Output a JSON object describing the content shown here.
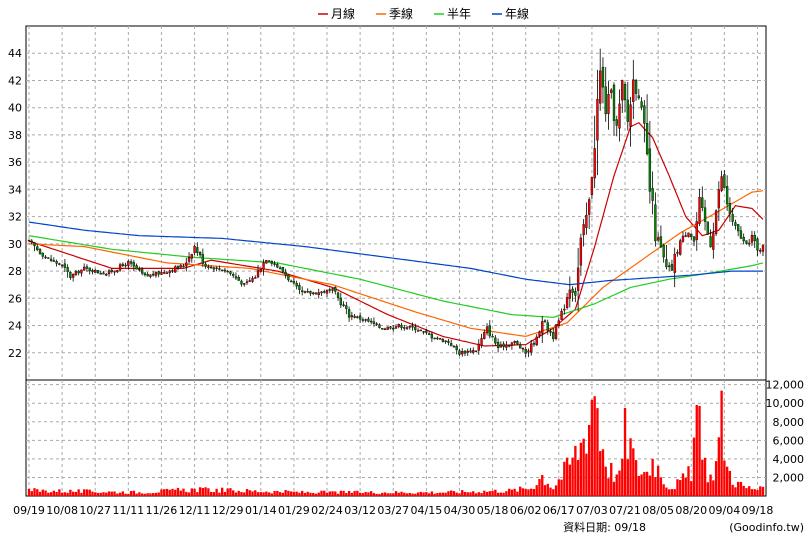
{
  "chart_data": {
    "type": "candlestick-volume",
    "legend": [
      {
        "name": "月線",
        "color": "#cc0000"
      },
      {
        "name": "季線",
        "color": "#ff6600"
      },
      {
        "name": "半年",
        "color": "#22cc22"
      },
      {
        "name": "年線",
        "color": "#0044cc"
      }
    ],
    "price_axis": {
      "ylim": [
        20,
        46
      ],
      "ticks": [
        22,
        24,
        26,
        28,
        30,
        32,
        34,
        36,
        38,
        40,
        42,
        44
      ]
    },
    "volume_axis": {
      "ylim": [
        0,
        12500
      ],
      "ticks": [
        2000,
        4000,
        6000,
        8000,
        10000,
        12000
      ],
      "tick_labels": [
        "2,000",
        "4,000",
        "6,000",
        "8,000",
        "10,000",
        "12,000"
      ]
    },
    "x_labels": [
      "09/19",
      "10/08",
      "10/27",
      "11/11",
      "11/26",
      "12/11",
      "12/29",
      "01/14",
      "01/29",
      "02/24",
      "03/12",
      "03/27",
      "04/15",
      "04/30",
      "05/18",
      "06/02",
      "06/17",
      "07/03",
      "07/21",
      "08/05",
      "08/20",
      "09/04",
      "09/18"
    ],
    "x_label_index": [
      0,
      12,
      24,
      36,
      48,
      60,
      72,
      84,
      96,
      108,
      120,
      132,
      144,
      156,
      168,
      180,
      192,
      204,
      216,
      228,
      240,
      252,
      264
    ],
    "anchors": [
      {
        "i": 0,
        "p": 30.2
      },
      {
        "i": 6,
        "p": 29.0
      },
      {
        "i": 12,
        "p": 28.4
      },
      {
        "i": 15,
        "p": 27.6
      },
      {
        "i": 20,
        "p": 28.2
      },
      {
        "i": 28,
        "p": 27.8
      },
      {
        "i": 36,
        "p": 28.6
      },
      {
        "i": 42,
        "p": 27.6
      },
      {
        "i": 50,
        "p": 28.0
      },
      {
        "i": 56,
        "p": 28.4
      },
      {
        "i": 60,
        "p": 29.8
      },
      {
        "i": 64,
        "p": 28.4
      },
      {
        "i": 72,
        "p": 28.0
      },
      {
        "i": 78,
        "p": 27.0
      },
      {
        "i": 82,
        "p": 27.6
      },
      {
        "i": 86,
        "p": 29.0
      },
      {
        "i": 92,
        "p": 28.0
      },
      {
        "i": 98,
        "p": 26.4
      },
      {
        "i": 104,
        "p": 26.4
      },
      {
        "i": 110,
        "p": 26.6
      },
      {
        "i": 116,
        "p": 24.8
      },
      {
        "i": 122,
        "p": 24.4
      },
      {
        "i": 128,
        "p": 23.8
      },
      {
        "i": 134,
        "p": 24.0
      },
      {
        "i": 140,
        "p": 23.8
      },
      {
        "i": 146,
        "p": 23.2
      },
      {
        "i": 152,
        "p": 22.8
      },
      {
        "i": 156,
        "p": 22.0
      },
      {
        "i": 162,
        "p": 22.2
      },
      {
        "i": 166,
        "p": 23.8
      },
      {
        "i": 170,
        "p": 22.4
      },
      {
        "i": 176,
        "p": 22.8
      },
      {
        "i": 180,
        "p": 22.0
      },
      {
        "i": 184,
        "p": 23.0
      },
      {
        "i": 186,
        "p": 24.6
      },
      {
        "i": 188,
        "p": 23.8
      },
      {
        "i": 190,
        "p": 23.2
      },
      {
        "i": 194,
        "p": 25.4
      },
      {
        "i": 196,
        "p": 27.0
      },
      {
        "i": 198,
        "p": 26.4
      },
      {
        "i": 200,
        "p": 30.0
      },
      {
        "i": 203,
        "p": 33.0
      },
      {
        "i": 205,
        "p": 38.0
      },
      {
        "i": 207,
        "p": 42.5
      },
      {
        "i": 209,
        "p": 40.0
      },
      {
        "i": 211,
        "p": 41.0
      },
      {
        "i": 213,
        "p": 38.5
      },
      {
        "i": 215,
        "p": 41.5
      },
      {
        "i": 217,
        "p": 39.0
      },
      {
        "i": 219,
        "p": 42.0
      },
      {
        "i": 221,
        "p": 41.0
      },
      {
        "i": 223,
        "p": 38.0
      },
      {
        "i": 225,
        "p": 34.0
      },
      {
        "i": 227,
        "p": 31.0
      },
      {
        "i": 229,
        "p": 29.5
      },
      {
        "i": 231,
        "p": 28.0
      },
      {
        "i": 233,
        "p": 28.2
      },
      {
        "i": 236,
        "p": 30.2
      },
      {
        "i": 239,
        "p": 31.0
      },
      {
        "i": 241,
        "p": 30.2
      },
      {
        "i": 243,
        "p": 33.0
      },
      {
        "i": 245,
        "p": 31.5
      },
      {
        "i": 247,
        "p": 30.0
      },
      {
        "i": 249,
        "p": 32.5
      },
      {
        "i": 251,
        "p": 35.0
      },
      {
        "i": 253,
        "p": 33.0
      },
      {
        "i": 255,
        "p": 31.5
      },
      {
        "i": 258,
        "p": 30.5
      },
      {
        "i": 260,
        "p": 29.8
      },
      {
        "i": 262,
        "p": 30.6
      },
      {
        "i": 264,
        "p": 29.4
      },
      {
        "i": 265,
        "p": 29.6
      },
      {
        "i": 266,
        "p": 30.2
      }
    ],
    "volume_anchors": [
      {
        "i": 0,
        "v": 600
      },
      {
        "i": 40,
        "v": 400
      },
      {
        "i": 60,
        "v": 700
      },
      {
        "i": 100,
        "v": 400
      },
      {
        "i": 150,
        "v": 400
      },
      {
        "i": 175,
        "v": 600
      },
      {
        "i": 182,
        "v": 900
      },
      {
        "i": 186,
        "v": 2200
      },
      {
        "i": 190,
        "v": 900
      },
      {
        "i": 196,
        "v": 3500
      },
      {
        "i": 200,
        "v": 5500
      },
      {
        "i": 203,
        "v": 8500
      },
      {
        "i": 205,
        "v": 12800
      },
      {
        "i": 207,
        "v": 6500
      },
      {
        "i": 210,
        "v": 3000
      },
      {
        "i": 214,
        "v": 2000
      },
      {
        "i": 216,
        "v": 6800
      },
      {
        "i": 218,
        "v": 5500
      },
      {
        "i": 220,
        "v": 3000
      },
      {
        "i": 224,
        "v": 2500
      },
      {
        "i": 226,
        "v": 4000
      },
      {
        "i": 228,
        "v": 3000
      },
      {
        "i": 232,
        "v": 900
      },
      {
        "i": 236,
        "v": 1500
      },
      {
        "i": 240,
        "v": 2500
      },
      {
        "i": 242,
        "v": 9500
      },
      {
        "i": 244,
        "v": 4000
      },
      {
        "i": 247,
        "v": 2000
      },
      {
        "i": 249,
        "v": 3500
      },
      {
        "i": 251,
        "v": 8500
      },
      {
        "i": 253,
        "v": 3000
      },
      {
        "i": 256,
        "v": 1500
      },
      {
        "i": 260,
        "v": 900
      },
      {
        "i": 266,
        "v": 700
      }
    ],
    "ma_lines": {
      "month": [
        {
          "i": 0,
          "p": 30.2
        },
        {
          "i": 30,
          "p": 28.2
        },
        {
          "i": 56,
          "p": 28.2
        },
        {
          "i": 66,
          "p": 28.8
        },
        {
          "i": 90,
          "p": 28.0
        },
        {
          "i": 110,
          "p": 26.8
        },
        {
          "i": 130,
          "p": 24.8
        },
        {
          "i": 150,
          "p": 23.2
        },
        {
          "i": 165,
          "p": 22.5
        },
        {
          "i": 180,
          "p": 22.6
        },
        {
          "i": 190,
          "p": 23.8
        },
        {
          "i": 198,
          "p": 25.2
        },
        {
          "i": 205,
          "p": 29.8
        },
        {
          "i": 212,
          "p": 35.0
        },
        {
          "i": 218,
          "p": 38.6
        },
        {
          "i": 221,
          "p": 38.9
        },
        {
          "i": 226,
          "p": 37.8
        },
        {
          "i": 232,
          "p": 35.0
        },
        {
          "i": 238,
          "p": 32.0
        },
        {
          "i": 244,
          "p": 30.6
        },
        {
          "i": 250,
          "p": 31.0
        },
        {
          "i": 256,
          "p": 32.8
        },
        {
          "i": 262,
          "p": 32.6
        },
        {
          "i": 266,
          "p": 31.8
        }
      ],
      "quarter": [
        {
          "i": 0,
          "p": 30.0
        },
        {
          "i": 20,
          "p": 29.8
        },
        {
          "i": 50,
          "p": 28.6
        },
        {
          "i": 80,
          "p": 28.2
        },
        {
          "i": 110,
          "p": 27.0
        },
        {
          "i": 140,
          "p": 25.0
        },
        {
          "i": 160,
          "p": 23.8
        },
        {
          "i": 180,
          "p": 23.2
        },
        {
          "i": 195,
          "p": 24.2
        },
        {
          "i": 208,
          "p": 26.8
        },
        {
          "i": 222,
          "p": 28.8
        },
        {
          "i": 236,
          "p": 30.8
        },
        {
          "i": 250,
          "p": 32.4
        },
        {
          "i": 262,
          "p": 33.8
        },
        {
          "i": 266,
          "p": 33.9
        }
      ],
      "half": [
        {
          "i": 0,
          "p": 30.6
        },
        {
          "i": 30,
          "p": 29.6
        },
        {
          "i": 60,
          "p": 29.0
        },
        {
          "i": 90,
          "p": 28.6
        },
        {
          "i": 120,
          "p": 27.4
        },
        {
          "i": 150,
          "p": 25.8
        },
        {
          "i": 175,
          "p": 24.8
        },
        {
          "i": 190,
          "p": 24.6
        },
        {
          "i": 205,
          "p": 25.6
        },
        {
          "i": 218,
          "p": 26.8
        },
        {
          "i": 232,
          "p": 27.4
        },
        {
          "i": 248,
          "p": 27.9
        },
        {
          "i": 262,
          "p": 28.4
        },
        {
          "i": 266,
          "p": 28.6
        }
      ],
      "year": [
        {
          "i": 0,
          "p": 31.6
        },
        {
          "i": 20,
          "p": 31.0
        },
        {
          "i": 40,
          "p": 30.6
        },
        {
          "i": 70,
          "p": 30.4
        },
        {
          "i": 100,
          "p": 29.8
        },
        {
          "i": 130,
          "p": 29.0
        },
        {
          "i": 160,
          "p": 28.2
        },
        {
          "i": 180,
          "p": 27.4
        },
        {
          "i": 196,
          "p": 27.0
        },
        {
          "i": 210,
          "p": 27.3
        },
        {
          "i": 225,
          "p": 27.5
        },
        {
          "i": 240,
          "p": 27.7
        },
        {
          "i": 255,
          "p": 28.0
        },
        {
          "i": 266,
          "p": 28.0
        }
      ]
    },
    "candle_colors": {
      "up": "#ff0000",
      "down": "#008800"
    },
    "volume_color": "#ff0000",
    "grid": true
  },
  "footer": {
    "label": "資料日期: 09/18",
    "source": "(Goodinfo.tw)"
  }
}
